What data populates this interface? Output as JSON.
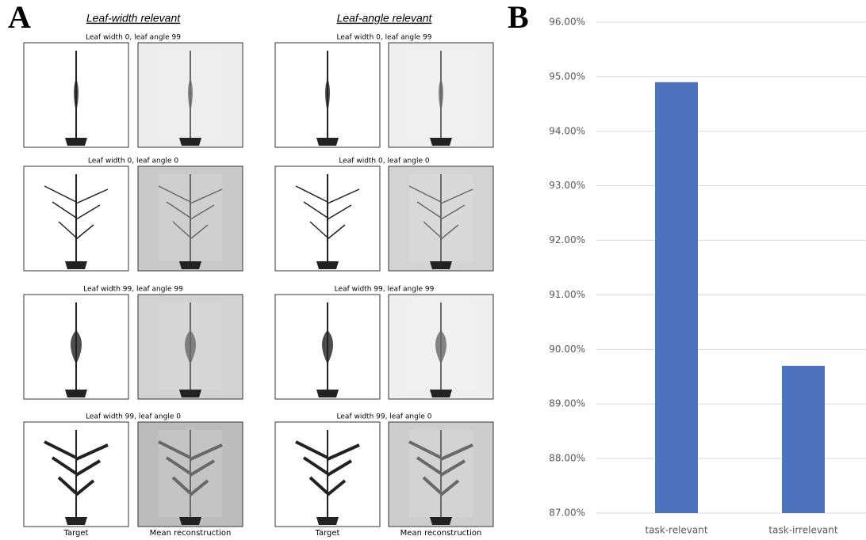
{
  "panel_a": {
    "label": "A",
    "columns": [
      {
        "title": "Leaf-width relevant",
        "rows": [
          "Leaf width 0, leaf angle 99",
          "Leaf width 0, leaf angle 0",
          "Leaf width 99, leaf angle 99",
          "Leaf width 99, leaf angle 0"
        ],
        "captions": [
          "Target",
          "Mean reconstruction"
        ]
      },
      {
        "title": "Leaf-angle relevant",
        "rows": [
          "Leaf width 0, leaf angle 99",
          "Leaf width 0, leaf angle 0",
          "Leaf width 99, leaf angle 99",
          "Leaf width 99, leaf angle 0"
        ],
        "captions": [
          "Target",
          "Mean reconstruction"
        ]
      }
    ]
  },
  "chart_data": {
    "type": "bar",
    "panel_label": "B",
    "categories": [
      "task-relevant",
      "task-irrelevant"
    ],
    "values": [
      94.9,
      89.7
    ],
    "color": "#4e72be",
    "ylim": [
      87,
      96
    ],
    "yticks": [
      {
        "value": 87,
        "label": "87.00%"
      },
      {
        "value": 88,
        "label": "88.00%"
      },
      {
        "value": 89,
        "label": "89.00%"
      },
      {
        "value": 90,
        "label": "90.00%"
      },
      {
        "value": 91,
        "label": "91.00%"
      },
      {
        "value": 92,
        "label": "92.00%"
      },
      {
        "value": 93,
        "label": "93.00%"
      },
      {
        "value": 94,
        "label": "94.00%"
      },
      {
        "value": 95,
        "label": "95.00%"
      },
      {
        "value": 96,
        "label": "96.00%"
      }
    ],
    "grid": true
  }
}
